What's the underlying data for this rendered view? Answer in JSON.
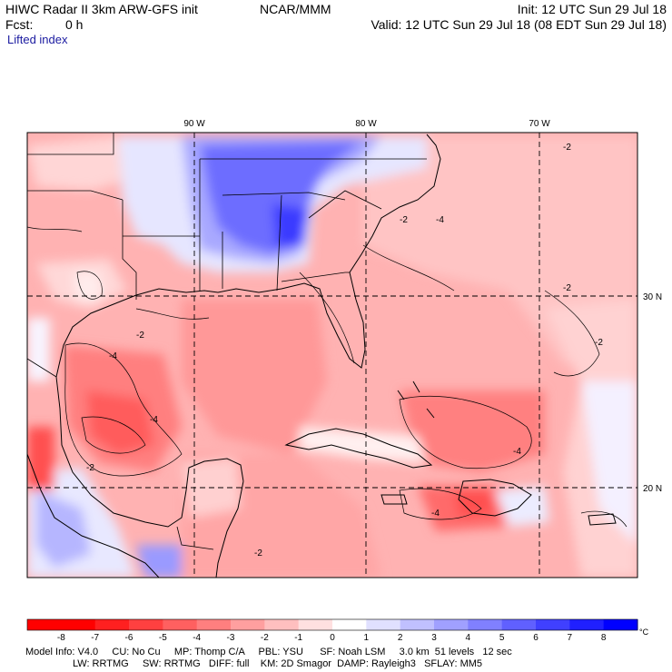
{
  "header": {
    "title": "HIWC Radar II 3km ARW-GFS init",
    "center": "NCAR/MMM",
    "init": "Init: 12 UTC Sun 29 Jul 18",
    "fcst_label": "Fcst:",
    "fcst_value": "0 h",
    "valid": "Valid: 12 UTC Sun 29 Jul 18 (08 EDT Sun 29 Jul 18)",
    "field": "Lifted index"
  },
  "map": {
    "lon_labels": [
      "90 W",
      "80 W",
      "70 W"
    ],
    "lat_labels": [
      "30 N",
      "20 N"
    ],
    "contour_label": "-2",
    "contour_label_4": "-4"
  },
  "colorbar": {
    "labels": [
      "-8",
      "-7",
      "-6",
      "-5",
      "-4",
      "-3",
      "-2",
      "-1",
      "0",
      "1",
      "2",
      "3",
      "4",
      "5",
      "6",
      "7",
      "8"
    ],
    "unit": "°C",
    "colors": [
      "#ff0000",
      "#ff2020",
      "#ff4040",
      "#ff6060",
      "#ff7f7f",
      "#ff9f9f",
      "#ffbfbf",
      "#ffe0e0",
      "#ffffff",
      "#e0e0ff",
      "#c0c0ff",
      "#a0a0ff",
      "#8080ff",
      "#6060ff",
      "#4040ff",
      "#2020ff",
      "#0000ff"
    ]
  },
  "footer": {
    "line1": "Model Info: V4.0     CU: No Cu     MP: Thomp C/A     PBL: YSU      SF: Noah LSM     3.0 km  51 levels   12 sec",
    "line2": "                 LW: RRTMG     SW: RRTMG   DIFF: full    KM: 2D Smagor  DAMP: Rayleigh3   SFLAY: MM5"
  }
}
